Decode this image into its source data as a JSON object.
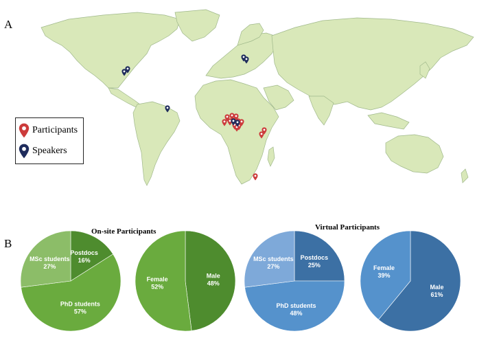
{
  "panels": {
    "a": "A",
    "b": "B"
  },
  "legend": {
    "participants": "Participants",
    "speakers": "Speakers",
    "participant_color": "#cc3b3b",
    "speaker_color": "#1f2c5c"
  },
  "chart_data": [
    {
      "type": "pie",
      "group": "On-site Participants",
      "slices": [
        {
          "label": "Postdocs",
          "value": 16,
          "text": "16%",
          "color": "#4e8c2e"
        },
        {
          "label": "PhD students",
          "value": 57,
          "text": "57%",
          "color": "#6aab3e"
        },
        {
          "label": "MSc students",
          "value": 27,
          "text": "27%",
          "color": "#8cbd68"
        }
      ]
    },
    {
      "type": "pie",
      "group": "On-site Participants",
      "slices": [
        {
          "label": "Male",
          "value": 48,
          "text": "48%",
          "color": "#4e8c2e"
        },
        {
          "label": "Female",
          "value": 52,
          "text": "52%",
          "color": "#6aab3e"
        }
      ]
    },
    {
      "type": "pie",
      "group": "Virtual Participants",
      "slices": [
        {
          "label": "Postdocs",
          "value": 25,
          "text": "25%",
          "color": "#3c70a4"
        },
        {
          "label": "PhD students",
          "value": 48,
          "text": "48%",
          "color": "#5592cc"
        },
        {
          "label": "MSc students",
          "value": 27,
          "text": "27%",
          "color": "#7ea9d9"
        }
      ]
    },
    {
      "type": "pie",
      "group": "Virtual Participants",
      "slices": [
        {
          "label": "Male",
          "value": 61,
          "text": "61%",
          "color": "#3c70a4"
        },
        {
          "label": "Female",
          "value": 39,
          "text": "39%",
          "color": "#5592cc"
        }
      ]
    }
  ],
  "group_titles": {
    "onsite": "On-site Participants",
    "virtual": "Virtual Participants"
  }
}
